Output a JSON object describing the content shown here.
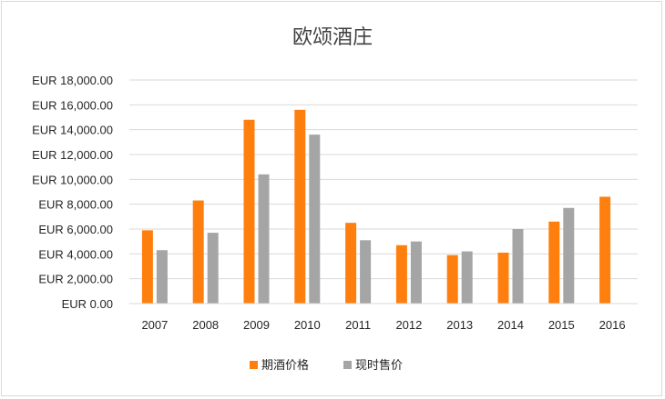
{
  "chart_data": {
    "type": "bar",
    "title": "欧颂酒庄",
    "categories": [
      "2007",
      "2008",
      "2009",
      "2010",
      "2011",
      "2012",
      "2013",
      "2014",
      "2015",
      "2016"
    ],
    "series": [
      {
        "name": "期酒价格",
        "color": "#ff7f0e",
        "values": [
          5900,
          8300,
          14800,
          15600,
          6500,
          4700,
          3900,
          4100,
          6600,
          8600
        ]
      },
      {
        "name": "现时售价",
        "color": "#a5a5a5",
        "values": [
          4300,
          5700,
          10400,
          13600,
          5100,
          5000,
          4200,
          6000,
          7700,
          null
        ]
      }
    ],
    "ylim": [
      0,
      18000
    ],
    "yticks": [
      "EUR 0.00",
      "EUR 2,000.00",
      "EUR 4,000.00",
      "EUR 6,000.00",
      "EUR 8,000.00",
      "EUR 10,000.00",
      "EUR 12,000.00",
      "EUR 14,000.00",
      "EUR 16,000.00",
      "EUR 18,000.00"
    ],
    "ytick_values": [
      0,
      2000,
      4000,
      6000,
      8000,
      10000,
      12000,
      14000,
      16000,
      18000
    ],
    "grid": true,
    "legend_position": "bottom"
  }
}
